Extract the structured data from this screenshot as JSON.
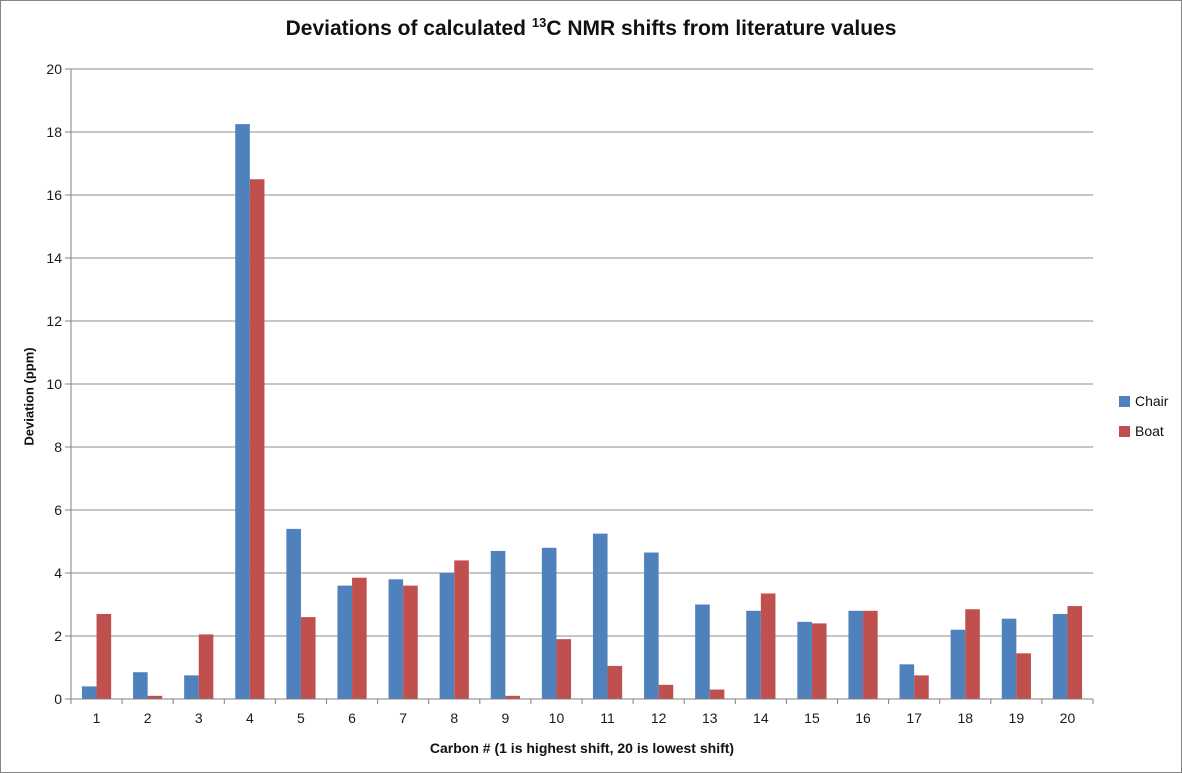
{
  "chart_data": {
    "type": "bar",
    "title": "Deviations of calculated ¹³C NMR shifts from literature values",
    "title_parts": {
      "prefix": "Deviations of calculated ",
      "superscript": "13",
      "suffix": "C NMR shifts from literature values"
    },
    "xlabel": "Carbon # (1 is highest shift, 20 is lowest shift)",
    "ylabel": "Deviation (ppm)",
    "categories": [
      "1",
      "2",
      "3",
      "4",
      "5",
      "6",
      "7",
      "8",
      "9",
      "10",
      "11",
      "12",
      "13",
      "14",
      "15",
      "16",
      "17",
      "18",
      "19",
      "20"
    ],
    "series": [
      {
        "name": "Chair",
        "color": "#4F81BD",
        "values": [
          0.4,
          0.85,
          0.75,
          18.25,
          5.4,
          3.6,
          3.8,
          4.0,
          4.7,
          4.8,
          5.25,
          4.65,
          3.0,
          2.8,
          2.45,
          2.8,
          1.1,
          2.2,
          2.55,
          2.7
        ]
      },
      {
        "name": "Boat",
        "color": "#C0504D",
        "values": [
          2.7,
          0.1,
          2.05,
          16.5,
          2.6,
          3.85,
          3.6,
          4.4,
          0.1,
          1.9,
          1.05,
          0.45,
          0.3,
          3.35,
          2.4,
          2.8,
          0.75,
          2.85,
          1.45,
          2.95
        ]
      }
    ],
    "ylim": [
      0,
      20
    ],
    "yticks": [
      0,
      2,
      4,
      6,
      8,
      10,
      12,
      14,
      16,
      18,
      20
    ],
    "grid": true,
    "legend_position": "right",
    "gridline_color": "#8E8E8E",
    "axis_color": "#808080",
    "tick_label_color": "#1a1a1a"
  }
}
